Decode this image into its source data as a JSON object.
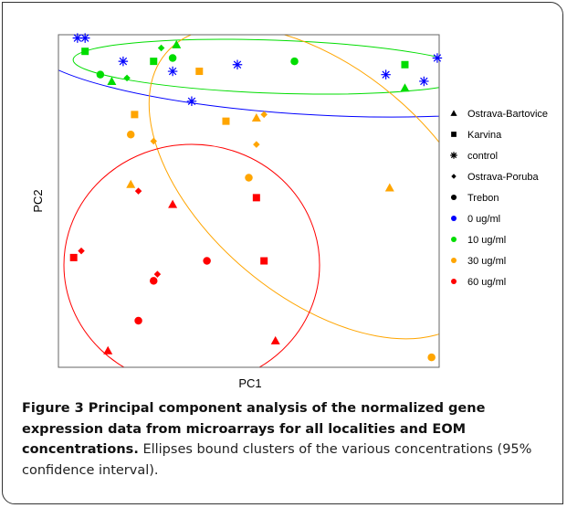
{
  "caption": {
    "title": "Figure 3 Principal component analysis of the normalized gene expression data from microarrays for all localities and EOM concentrations.",
    "body": "Ellipses bound clusters of the various concentrations (95% confidence interval)."
  },
  "chart_data": {
    "type": "scatter",
    "title": "",
    "xlabel": "PC1",
    "ylabel": "PC2",
    "xlim": [
      0,
      100
    ],
    "ylim": [
      0,
      100
    ],
    "grid": false,
    "legend_position": "right",
    "legend": {
      "shapes": [
        {
          "label": "Ostrava-Bartovice",
          "marker": "triangle"
        },
        {
          "label": "Karvina",
          "marker": "square"
        },
        {
          "label": "control",
          "marker": "asterisk"
        },
        {
          "label": "Ostrava-Poruba",
          "marker": "diamond"
        },
        {
          "label": "Trebon",
          "marker": "circle"
        }
      ],
      "colors": [
        {
          "label": "0 ug/ml",
          "color": "#0000ff"
        },
        {
          "label": "10 ug/ml",
          "color": "#00dd00"
        },
        {
          "label": "30 ug/ml",
          "color": "#ffa500"
        },
        {
          "label": "60 ug/ml",
          "color": "#ff0000"
        }
      ]
    },
    "points": [
      {
        "x": 5,
        "y": 99,
        "shape": "asterisk",
        "group": "0 ug/ml"
      },
      {
        "x": 7,
        "y": 99,
        "shape": "asterisk",
        "group": "0 ug/ml"
      },
      {
        "x": 17,
        "y": 92,
        "shape": "asterisk",
        "group": "0 ug/ml"
      },
      {
        "x": 30,
        "y": 89,
        "shape": "asterisk",
        "group": "0 ug/ml"
      },
      {
        "x": 47,
        "y": 91,
        "shape": "asterisk",
        "group": "0 ug/ml"
      },
      {
        "x": 35,
        "y": 80,
        "shape": "asterisk",
        "group": "0 ug/ml"
      },
      {
        "x": 86,
        "y": 88,
        "shape": "asterisk",
        "group": "0 ug/ml"
      },
      {
        "x": 96,
        "y": 86,
        "shape": "asterisk",
        "group": "0 ug/ml"
      },
      {
        "x": 99.5,
        "y": 93,
        "shape": "asterisk",
        "group": "0 ug/ml"
      },
      {
        "x": 7,
        "y": 95,
        "shape": "square",
        "group": "10 ug/ml"
      },
      {
        "x": 25,
        "y": 92,
        "shape": "square",
        "group": "10 ug/ml"
      },
      {
        "x": 91,
        "y": 91,
        "shape": "square",
        "group": "10 ug/ml"
      },
      {
        "x": 27,
        "y": 96,
        "shape": "diamond",
        "group": "10 ug/ml"
      },
      {
        "x": 18,
        "y": 87,
        "shape": "diamond",
        "group": "10 ug/ml"
      },
      {
        "x": 31,
        "y": 97,
        "shape": "triangle",
        "group": "10 ug/ml"
      },
      {
        "x": 14,
        "y": 86,
        "shape": "triangle",
        "group": "10 ug/ml"
      },
      {
        "x": 91,
        "y": 84,
        "shape": "triangle",
        "group": "10 ug/ml"
      },
      {
        "x": 11,
        "y": 88,
        "shape": "circle",
        "group": "10 ug/ml"
      },
      {
        "x": 30,
        "y": 93,
        "shape": "circle",
        "group": "10 ug/ml"
      },
      {
        "x": 62,
        "y": 92,
        "shape": "circle",
        "group": "10 ug/ml"
      },
      {
        "x": 37,
        "y": 89,
        "shape": "square",
        "group": "30 ug/ml"
      },
      {
        "x": 20,
        "y": 76,
        "shape": "square",
        "group": "30 ug/ml"
      },
      {
        "x": 44,
        "y": 74,
        "shape": "square",
        "group": "30 ug/ml"
      },
      {
        "x": 52,
        "y": 75,
        "shape": "triangle",
        "group": "30 ug/ml"
      },
      {
        "x": 19,
        "y": 55,
        "shape": "triangle",
        "group": "30 ug/ml"
      },
      {
        "x": 87,
        "y": 54,
        "shape": "triangle",
        "group": "30 ug/ml"
      },
      {
        "x": 54,
        "y": 76,
        "shape": "diamond",
        "group": "30 ug/ml"
      },
      {
        "x": 25,
        "y": 68,
        "shape": "diamond",
        "group": "30 ug/ml"
      },
      {
        "x": 52,
        "y": 67,
        "shape": "diamond",
        "group": "30 ug/ml"
      },
      {
        "x": 19,
        "y": 70,
        "shape": "circle",
        "group": "30 ug/ml"
      },
      {
        "x": 50,
        "y": 57,
        "shape": "circle",
        "group": "30 ug/ml"
      },
      {
        "x": 98,
        "y": 3,
        "shape": "circle",
        "group": "30 ug/ml"
      },
      {
        "x": 52,
        "y": 51,
        "shape": "square",
        "group": "60 ug/ml"
      },
      {
        "x": 4,
        "y": 33,
        "shape": "square",
        "group": "60 ug/ml"
      },
      {
        "x": 54,
        "y": 32,
        "shape": "square",
        "group": "60 ug/ml"
      },
      {
        "x": 30,
        "y": 49,
        "shape": "triangle",
        "group": "60 ug/ml"
      },
      {
        "x": 13,
        "y": 5,
        "shape": "triangle",
        "group": "60 ug/ml"
      },
      {
        "x": 57,
        "y": 8,
        "shape": "triangle",
        "group": "60 ug/ml"
      },
      {
        "x": 21,
        "y": 53,
        "shape": "diamond",
        "group": "60 ug/ml"
      },
      {
        "x": 6,
        "y": 35,
        "shape": "diamond",
        "group": "60 ug/ml"
      },
      {
        "x": 26,
        "y": 28,
        "shape": "diamond",
        "group": "60 ug/ml"
      },
      {
        "x": 39,
        "y": 32,
        "shape": "circle",
        "group": "60 ug/ml"
      },
      {
        "x": 25,
        "y": 26,
        "shape": "circle",
        "group": "60 ug/ml"
      },
      {
        "x": 21,
        "y": 14,
        "shape": "circle",
        "group": "60 ug/ml"
      }
    ]
  }
}
